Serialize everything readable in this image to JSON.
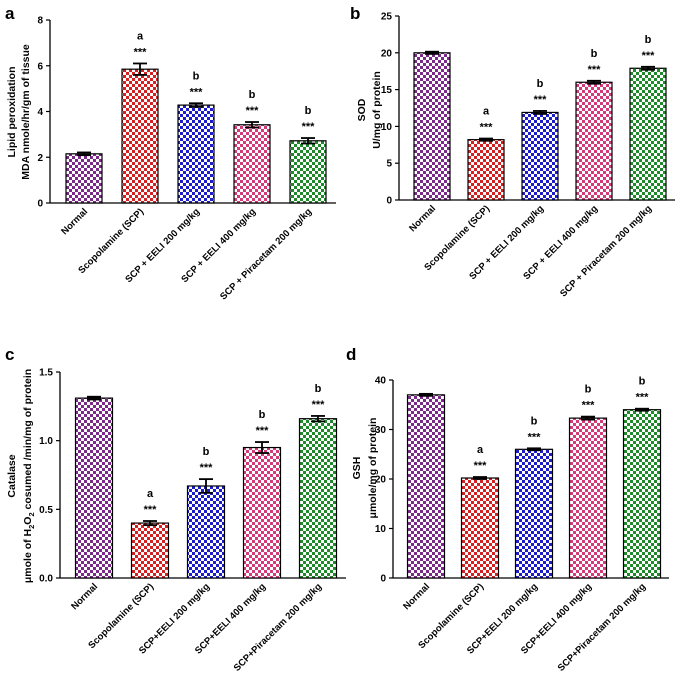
{
  "chart_data": [
    {
      "panel": "a",
      "type": "bar",
      "ylabel": "Lipid peroxidation",
      "ylabel2": "MDA nmole/hr/gm of tissue",
      "ylim": [
        0,
        8
      ],
      "yticks": [
        "0",
        "2",
        "4",
        "6",
        "8"
      ],
      "categories": [
        "Normal",
        "Scopolamine (SCP)",
        "SCP + EELI 200 mg/kg",
        "SCP + EELI 400 mg/kg",
        "SCP + Piracetam 200 mg/kg"
      ],
      "values": [
        2.15,
        5.85,
        4.28,
        3.42,
        2.72
      ],
      "errors": [
        0.06,
        0.25,
        0.08,
        0.12,
        0.12
      ],
      "stars": [
        "",
        "***",
        "***",
        "***",
        "***"
      ],
      "letters": [
        "",
        "a",
        "b",
        "b",
        "b"
      ]
    },
    {
      "panel": "b",
      "type": "bar",
      "ylabel": "SOD",
      "ylabel2": "U/mg of protein",
      "ylim": [
        0,
        25
      ],
      "yticks": [
        "0",
        "5",
        "10",
        "15",
        "20",
        "25"
      ],
      "categories": [
        "Normal",
        "Scopolamine (SCP)",
        "SCP + EELI 200 mg/kg",
        "SCP + EELI 400 mg/kg",
        "SCP + Piracetam 200 mg/kg"
      ],
      "values": [
        20.0,
        8.2,
        11.9,
        16.0,
        17.9
      ],
      "errors": [
        0.15,
        0.15,
        0.2,
        0.2,
        0.2
      ],
      "stars": [
        "",
        "***",
        "***",
        "***",
        "***"
      ],
      "letters": [
        "",
        "a",
        "b",
        "b",
        "b"
      ]
    },
    {
      "panel": "c",
      "type": "bar",
      "ylabel": "Catalase",
      "ylabel2": "μmole of H2O2 cosumed /min/mg of protein",
      "ylabel2_pre": "μmole of H",
      "ylabel2_sub": "2",
      "ylabel2_mid": "O",
      "ylabel2_post": " cosumed /min/mg of protein",
      "ylim": [
        0,
        1.5
      ],
      "yticks": [
        "0.0",
        "0.5",
        "1.0",
        "1.5"
      ],
      "categories": [
        "Normal",
        "Scopolamine (SCP)",
        "SCP+EELI 200 mg/kg",
        "SCP+EELI 400 mg/kg",
        "SCP+Piracetam 200 mg/kg"
      ],
      "values": [
        1.31,
        0.4,
        0.67,
        0.95,
        1.16
      ],
      "errors": [
        0.01,
        0.015,
        0.05,
        0.04,
        0.02
      ],
      "stars": [
        "",
        "***",
        "***",
        "***",
        "***"
      ],
      "letters": [
        "",
        "a",
        "b",
        "b",
        "b"
      ]
    },
    {
      "panel": "d",
      "type": "bar",
      "ylabel": "GSH",
      "ylabel2": "μmole/mg of protein",
      "ylim": [
        0,
        40
      ],
      "yticks": [
        "0",
        "10",
        "20",
        "30",
        "40"
      ],
      "categories": [
        "Normal",
        "Scopolamine (SCP)",
        "SCP+EELI 200 mg/kg",
        "SCP+EELI 400 mg/kg",
        "SCP+Piracetam 200 mg/kg"
      ],
      "values": [
        37.0,
        20.2,
        26.0,
        32.3,
        34.0
      ],
      "errors": [
        0.2,
        0.2,
        0.2,
        0.3,
        0.2
      ],
      "stars": [
        "",
        "***",
        "***",
        "***",
        "***"
      ],
      "letters": [
        "",
        "a",
        "b",
        "b",
        "b"
      ]
    }
  ],
  "colors": {
    "bar_fills": [
      "#7b2a8a",
      "#d42020",
      "#1c1ccc",
      "#d43a7a",
      "#1e8a2a"
    ]
  }
}
